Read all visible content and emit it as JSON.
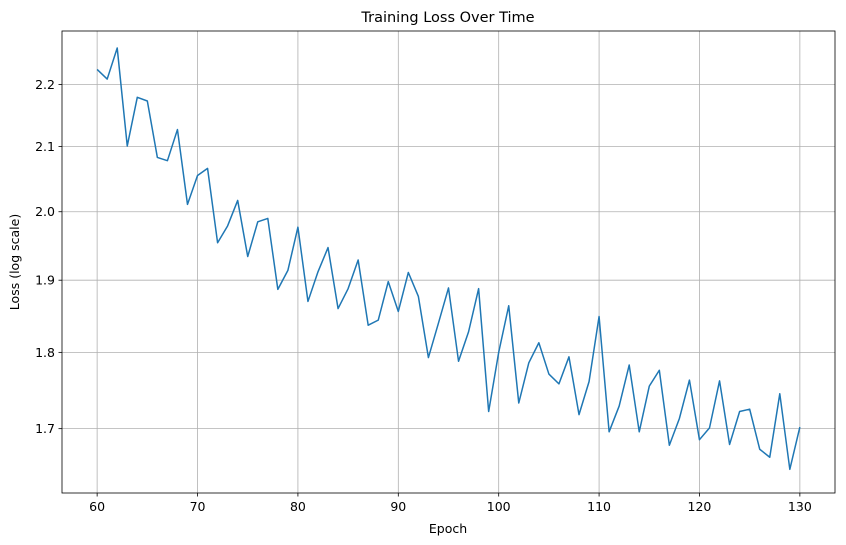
{
  "chart_data": {
    "type": "line",
    "title": "Training Loss Over Time",
    "xlabel": "Epoch",
    "ylabel": "Loss (log scale)",
    "xlim": [
      56.5,
      133.5
    ],
    "ylim": [
      1.62,
      2.29
    ],
    "y_scale": "log",
    "grid": true,
    "x_ticks": [
      60,
      70,
      80,
      90,
      100,
      110,
      120,
      130
    ],
    "x_tick_labels": [
      "60",
      "70",
      "80",
      "90",
      "100",
      "110",
      "120",
      "130"
    ],
    "y_ticks": [
      1.7,
      1.8,
      1.9,
      2.0,
      2.1,
      2.2
    ],
    "y_tick_labels": [
      "1.7",
      "1.8",
      "1.9",
      "2.0",
      "2.1",
      "2.2"
    ],
    "line_color": "#1f77b4",
    "series": [
      {
        "x": [
          60,
          61,
          62,
          63,
          64,
          65,
          66,
          67,
          68,
          69,
          70,
          71,
          72,
          73,
          74,
          75,
          76,
          77,
          78,
          79,
          80,
          81,
          82,
          83,
          84,
          85,
          86,
          87,
          88,
          89,
          90,
          91,
          92,
          93,
          94,
          95,
          96,
          97,
          98,
          99,
          100,
          101,
          102,
          103,
          104,
          105,
          106,
          107,
          108,
          109,
          110,
          111,
          112,
          113,
          114,
          115,
          116,
          117,
          118,
          119,
          120,
          121,
          122,
          123,
          124,
          125,
          126,
          127,
          128,
          129,
          130
        ],
        "values": [
          2.225,
          2.209,
          2.261,
          2.101,
          2.179,
          2.173,
          2.083,
          2.078,
          2.127,
          2.011,
          2.055,
          2.066,
          1.954,
          1.979,
          2.017,
          1.934,
          1.985,
          1.99,
          1.887,
          1.914,
          1.977,
          1.87,
          1.912,
          1.947,
          1.86,
          1.888,
          1.929,
          1.837,
          1.844,
          1.898,
          1.856,
          1.911,
          1.877,
          1.793,
          1.84,
          1.889,
          1.788,
          1.828,
          1.888,
          1.722,
          1.8,
          1.864,
          1.733,
          1.786,
          1.813,
          1.771,
          1.758,
          1.794,
          1.718,
          1.761,
          1.849,
          1.696,
          1.729,
          1.783,
          1.696,
          1.755,
          1.776,
          1.679,
          1.713,
          1.763,
          1.686,
          1.701,
          1.762,
          1.68,
          1.722,
          1.725,
          1.674,
          1.664,
          1.745,
          1.649,
          1.702
        ]
      }
    ]
  }
}
